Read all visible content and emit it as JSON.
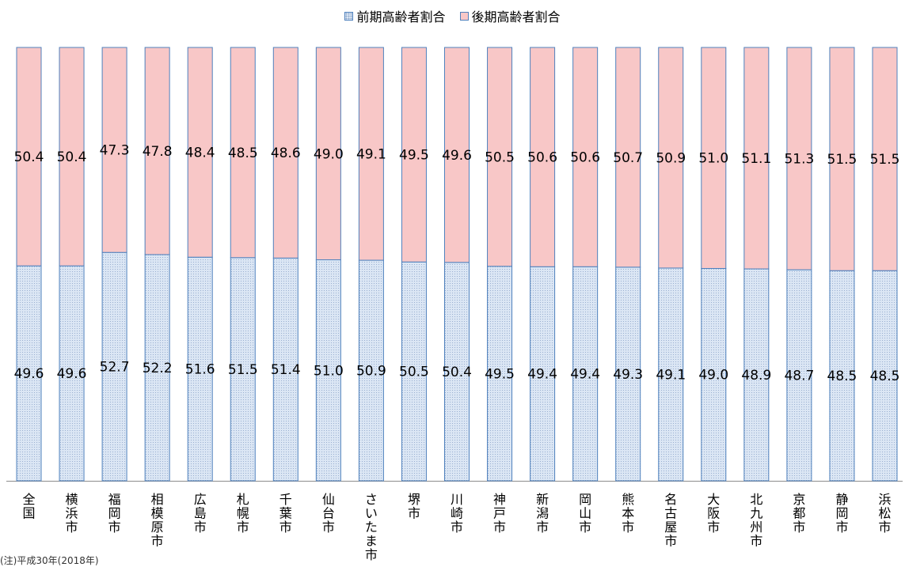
{
  "legend": {
    "early_label": "前期高齢者割合",
    "late_label": "後期高齢者割合"
  },
  "footnote": "(注)平成30年(2018年)",
  "colors": {
    "early_fill": "#dbe6f4",
    "early_dot": "#8aa4c8",
    "late_fill": "#f8c7c7",
    "border": "#4f81bd",
    "axis": "#8c8c8c"
  },
  "chart_data": {
    "type": "bar",
    "stacked": true,
    "percent_stacked": true,
    "ylim": [
      0,
      100
    ],
    "legend_position": "top-center",
    "grid": false,
    "categories": [
      "全国",
      "横浜市",
      "福岡市",
      "相模原市",
      "広島市",
      "札幌市",
      "千葉市",
      "仙台市",
      "さいたま市",
      "堺市",
      "川崎市",
      "神戸市",
      "新潟市",
      "岡山市",
      "熊本市",
      "名古屋市",
      "大阪市",
      "北九州市",
      "京都市",
      "静岡市",
      "浜松市"
    ],
    "series": [
      {
        "name": "前期高齢者割合",
        "values": [
          49.6,
          49.6,
          52.7,
          52.2,
          51.6,
          51.5,
          51.4,
          51.0,
          50.9,
          50.5,
          50.4,
          49.5,
          49.4,
          49.4,
          49.3,
          49.1,
          49.0,
          48.9,
          48.7,
          48.5,
          48.5
        ],
        "labels": [
          "49.6",
          "49.6",
          "52.7",
          "52.2",
          "51.6",
          "51.5",
          "51.4",
          "51.0",
          "50.9",
          "50.5",
          "50.4",
          "49.5",
          "49.4",
          "49.4",
          "49.3",
          "49.1",
          "49.0",
          "48.9",
          "48.7",
          "48.5",
          "48.5"
        ]
      },
      {
        "name": "後期高齢者割合",
        "values": [
          50.4,
          50.4,
          47.3,
          47.8,
          48.4,
          48.5,
          48.6,
          49.0,
          49.1,
          49.5,
          49.6,
          50.5,
          50.6,
          50.6,
          50.7,
          50.9,
          51.0,
          51.1,
          51.3,
          51.5,
          51.5
        ],
        "labels": [
          "50.4",
          "50.4",
          "47.3",
          "47.8",
          "48.4",
          "48.5",
          "48.6",
          "49.0",
          "49.1",
          "49.5",
          "49.6",
          "50.5",
          "50.6",
          "50.6",
          "50.7",
          "50.9",
          "51.0",
          "51.1",
          "51.3",
          "51.5",
          "51.5"
        ]
      }
    ]
  }
}
